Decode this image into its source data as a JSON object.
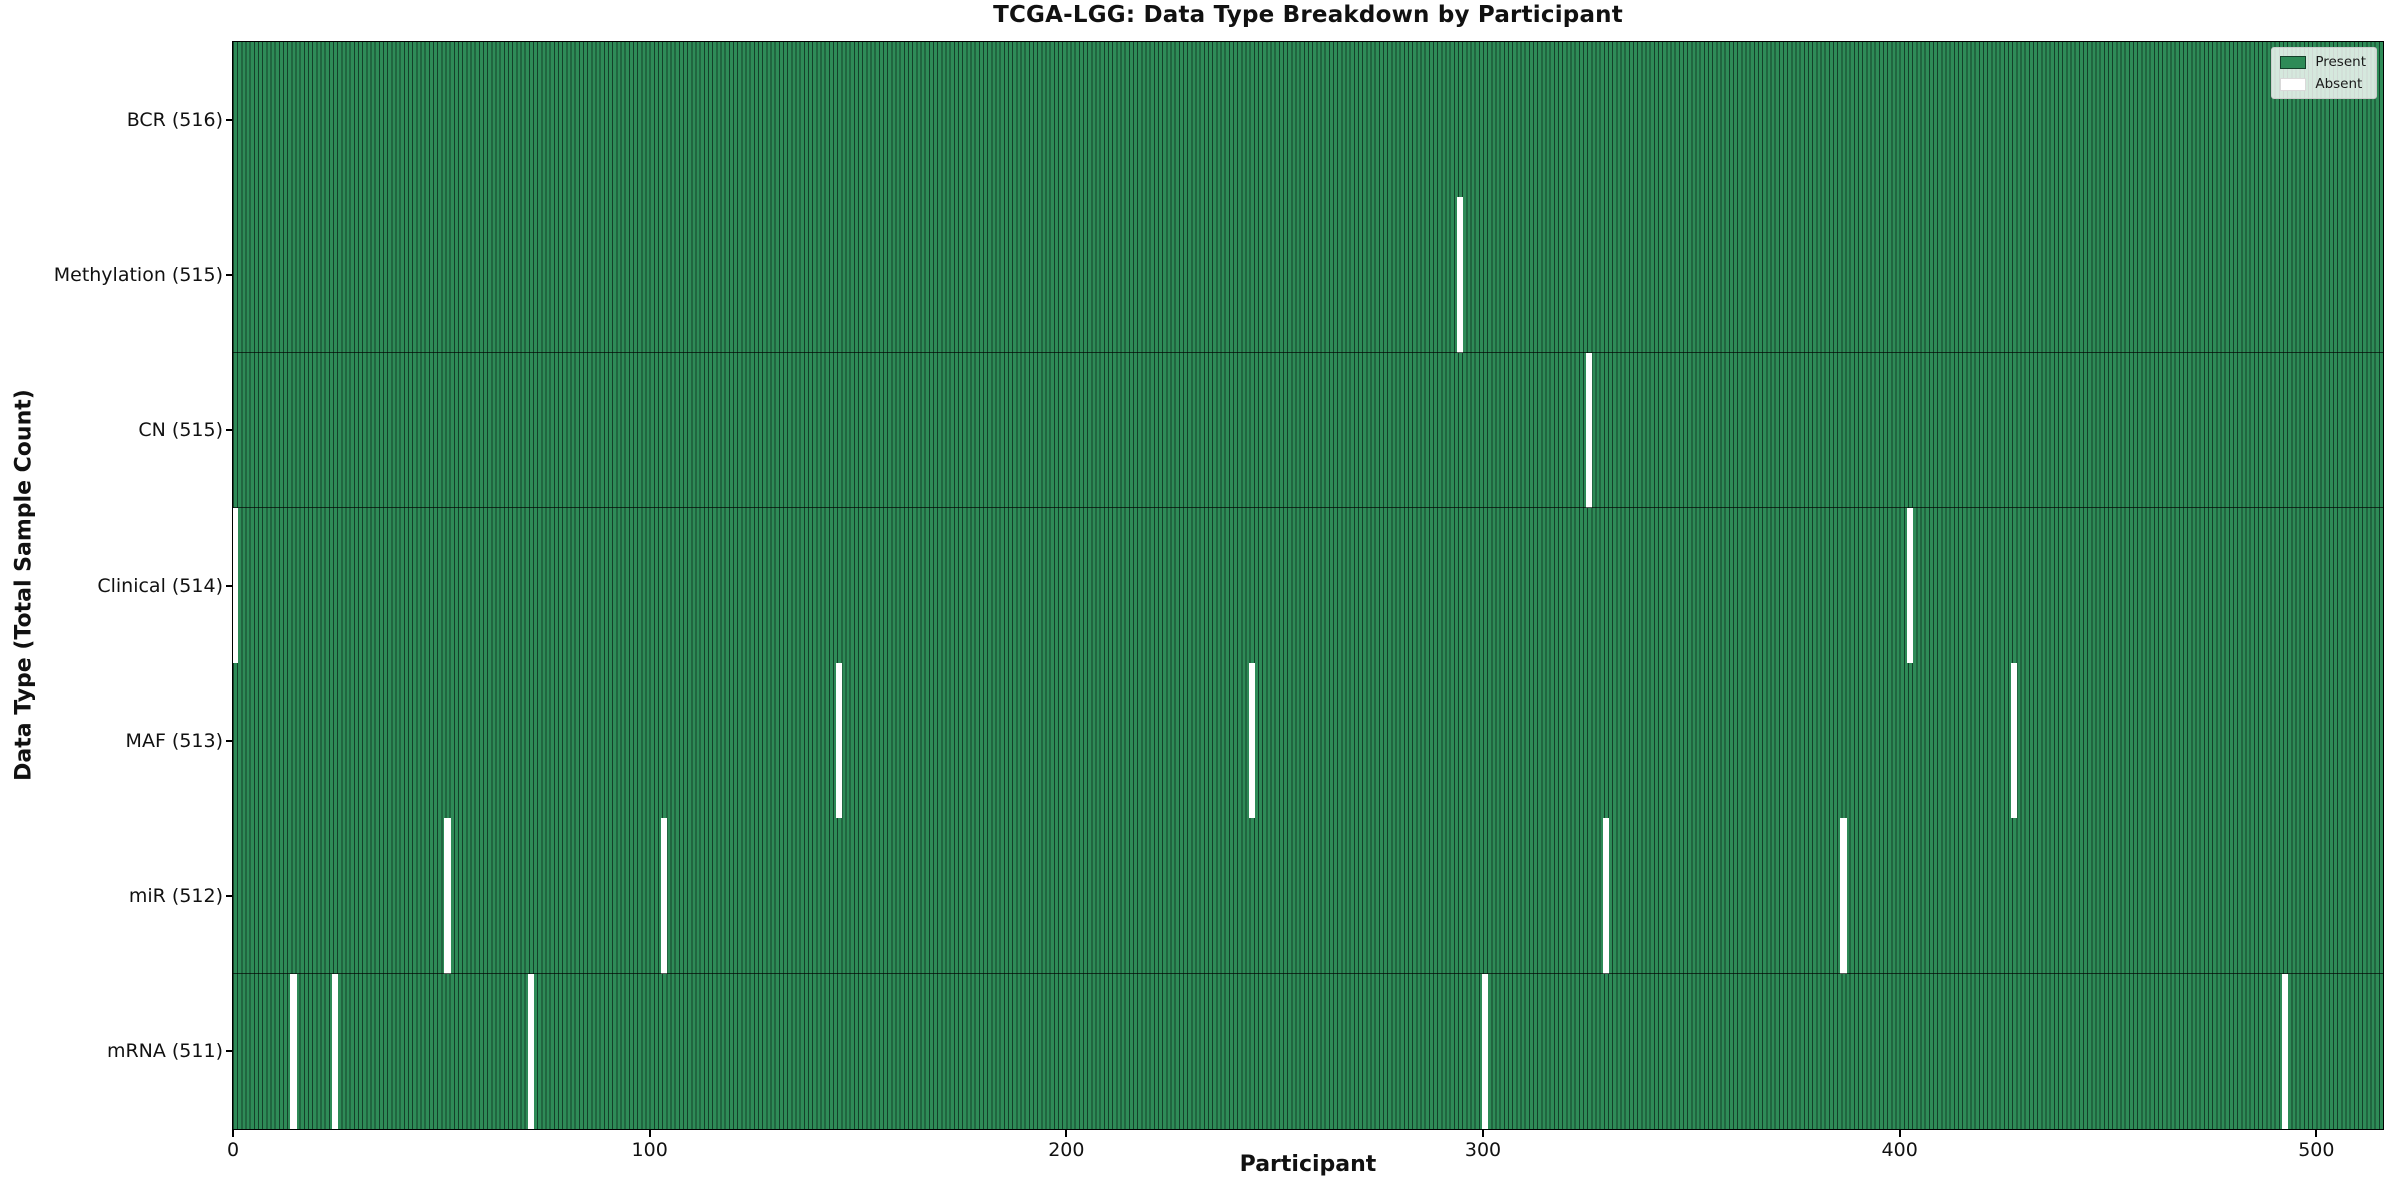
{
  "figure": {
    "title": "TCGA-LGG: Data Type Breakdown by Participant",
    "xlabel": "Participant",
    "ylabel": "Data Type (Total Sample Count)"
  },
  "legend": {
    "items": [
      {
        "label": "Present",
        "color": "#2e8b57"
      },
      {
        "label": "Absent",
        "color": "#ffffff"
      }
    ]
  },
  "chart_data": {
    "type": "heatmap",
    "title": "TCGA-LGG: Data Type Breakdown by Participant",
    "xlabel": "Participant",
    "ylabel": "Data Type (Total Sample Count)",
    "total_participants": 516,
    "xlim": [
      0,
      516
    ],
    "x_ticks": [
      "0",
      "100",
      "200",
      "300",
      "400",
      "500"
    ],
    "x_tick_values": [
      0,
      100,
      200,
      300,
      400,
      500
    ],
    "grid": false,
    "legend_position": "upper right",
    "colors": {
      "present": "#2e8b57",
      "absent": "#ffffff",
      "cell_edge": "#14402a",
      "row_divider": "rgba(0,0,0,0.65)"
    },
    "rows": [
      {
        "label": "BCR (516)",
        "data_type": "BCR",
        "present_count": 516,
        "absent_participants": []
      },
      {
        "label": "Methylation (515)",
        "data_type": "Methylation",
        "present_count": 515,
        "absent_participants": [
          294
        ]
      },
      {
        "label": "CN (515)",
        "data_type": "CN",
        "present_count": 515,
        "absent_participants": [
          325
        ]
      },
      {
        "label": "Clinical (514)",
        "data_type": "Clinical",
        "present_count": 514,
        "absent_participants": [
          0,
          402
        ]
      },
      {
        "label": "MAF (513)",
        "data_type": "MAF",
        "present_count": 513,
        "absent_participants": [
          145,
          244,
          427
        ]
      },
      {
        "label": "miR (512)",
        "data_type": "miR",
        "present_count": 512,
        "absent_participants": [
          51,
          103,
          329,
          386
        ]
      },
      {
        "label": "mRNA (511)",
        "data_type": "mRNA",
        "present_count": 511,
        "absent_participants": [
          14,
          24,
          71,
          300,
          492
        ]
      }
    ]
  }
}
